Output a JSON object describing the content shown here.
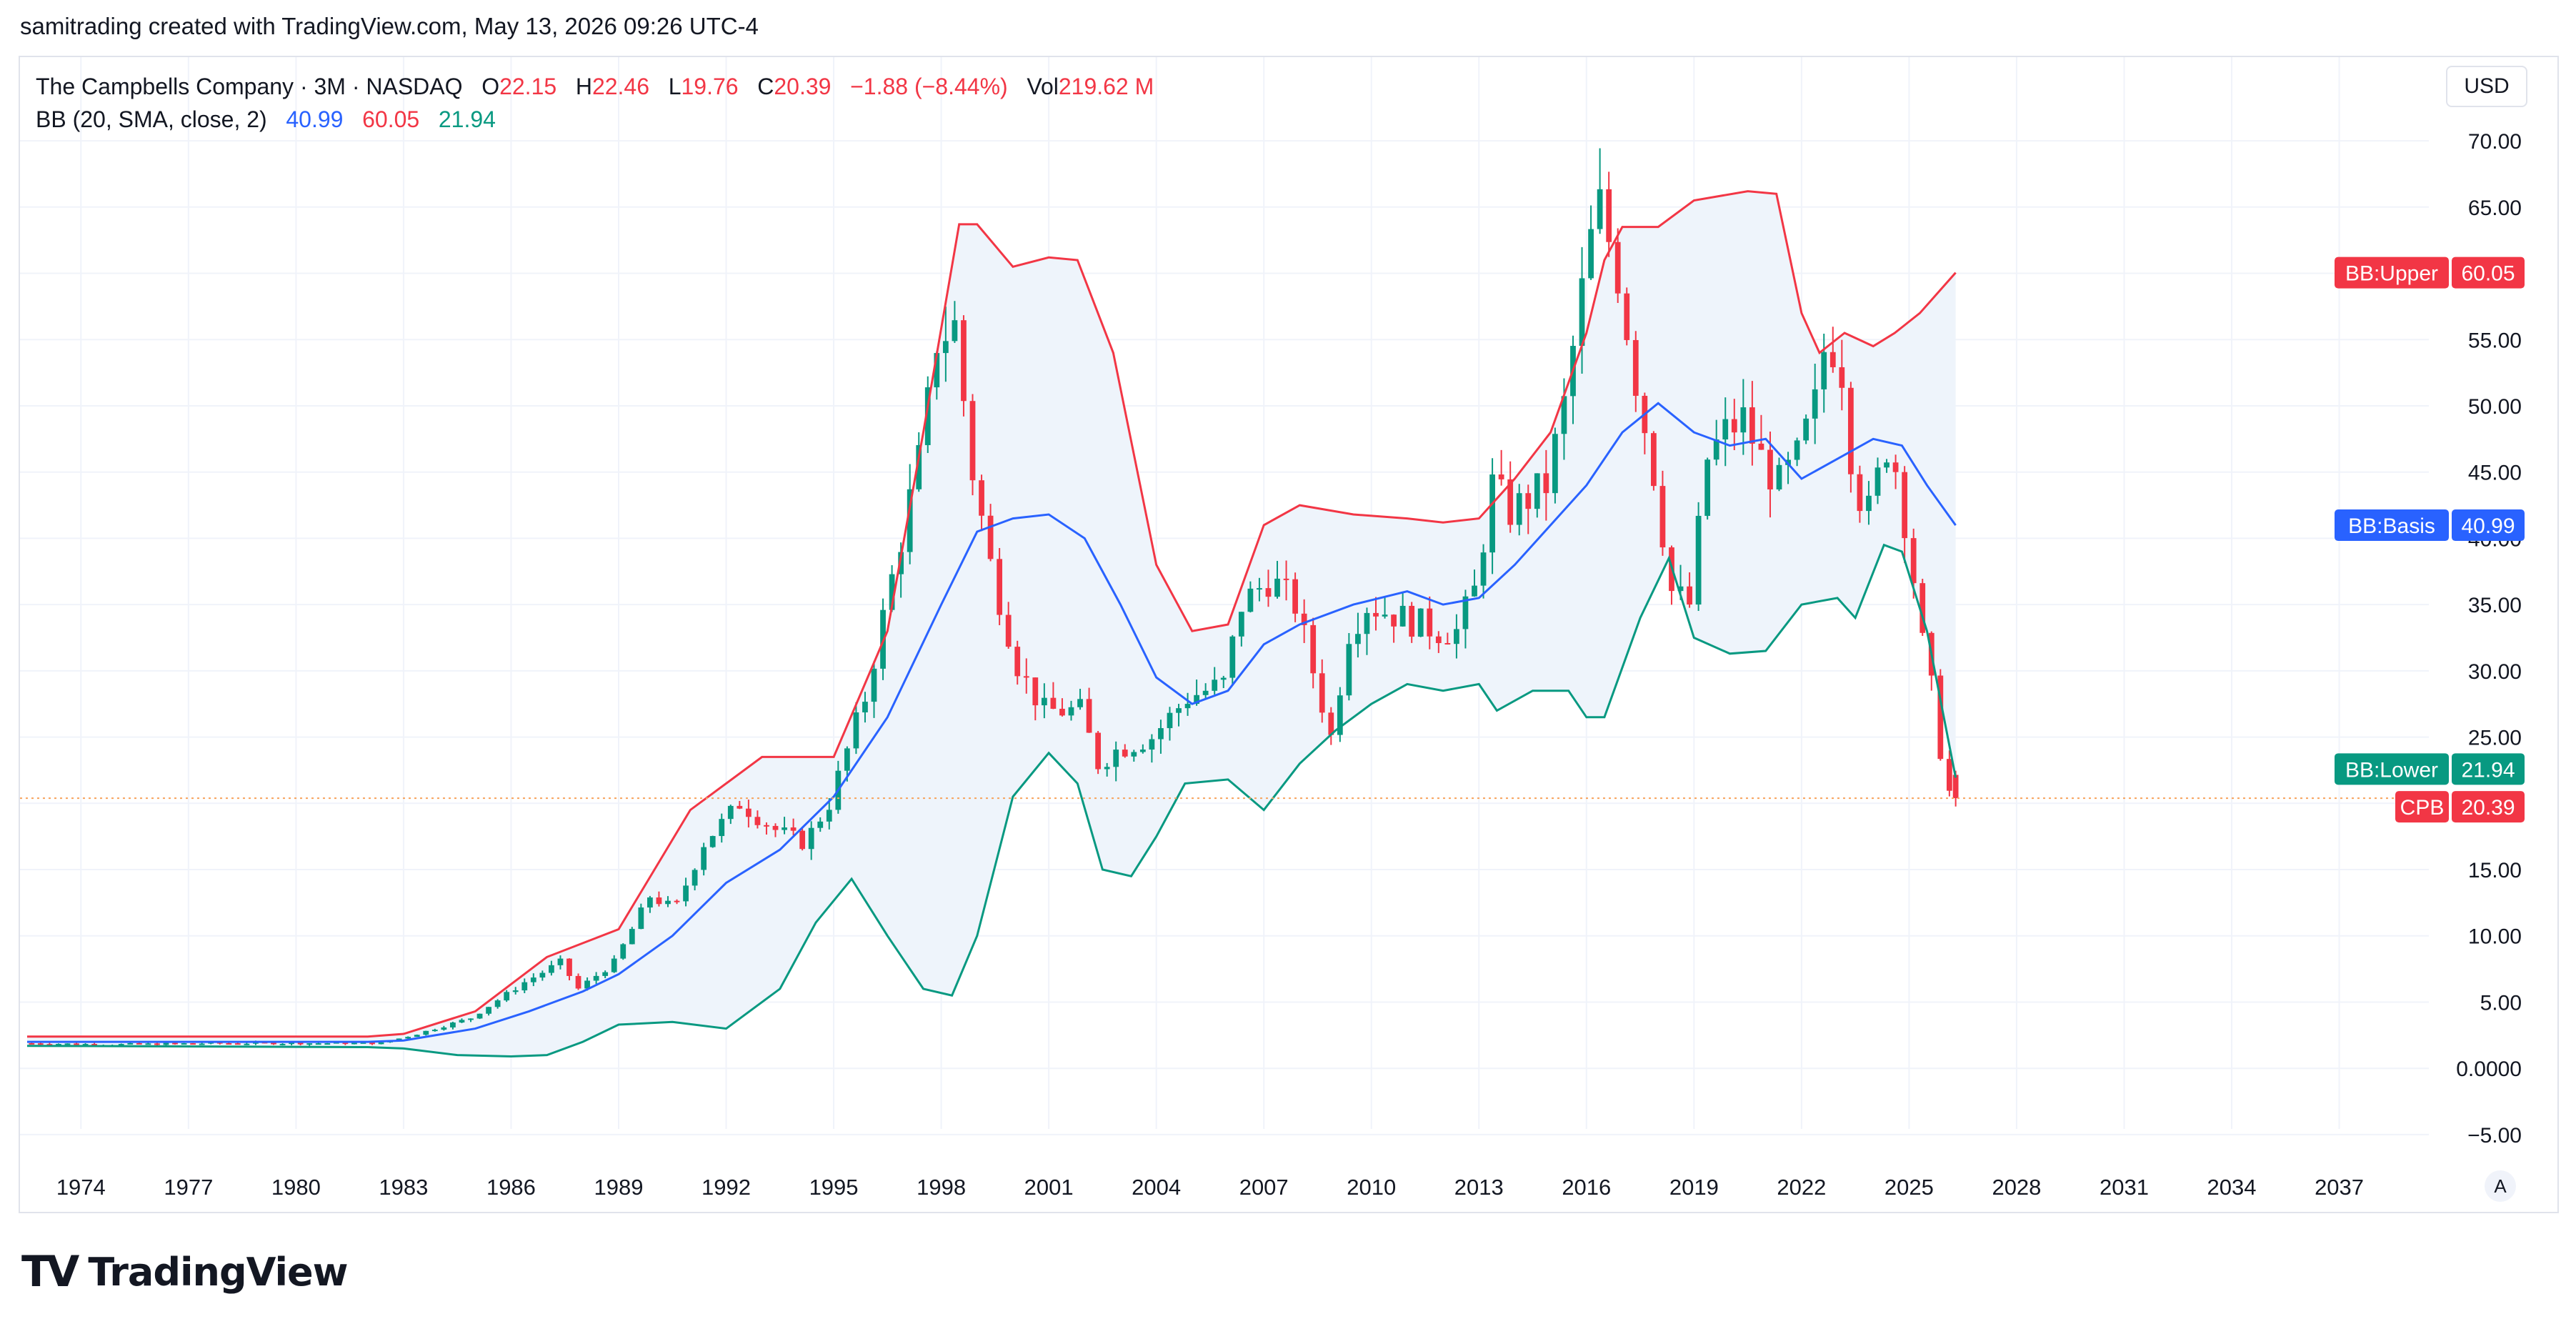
{
  "caption": "samitrading created with TradingView.com, May 13, 2026 09:26 UTC-4",
  "header": {
    "symbol": "The Campbells Company · 3M · NASDAQ",
    "o_label": "O",
    "o_value": "22.15",
    "h_label": "H",
    "h_value": "22.46",
    "l_label": "L",
    "l_value": "19.76",
    "c_label": "C",
    "c_value": "20.39",
    "change": "−1.88 (−8.44%)",
    "vol_label": "Vol",
    "vol_value": "219.62 M"
  },
  "indicator": {
    "name": "BB (20, SMA, close, 2)",
    "basis": "40.99",
    "upper": "60.05",
    "lower": "21.94"
  },
  "currency": "USD",
  "auto_label": "A",
  "logo_text": "TradingView",
  "colors": {
    "up": "#089981",
    "down": "#f23645",
    "basis": "#2962ff",
    "upper": "#f23645",
    "lower": "#089981",
    "fill": "#eef4fb",
    "last_price_line": "#f7a35c"
  },
  "chart_data": {
    "type": "candlestick",
    "title": "The Campbells Company · 3M · NASDAQ",
    "ylim": [
      -7,
      72
    ],
    "xlim": [
      1972.3,
      2039.5
    ],
    "y_ticks": [
      "70.00",
      "65.00",
      "60.00",
      "55.00",
      "50.00",
      "45.00",
      "40.00",
      "35.00",
      "30.00",
      "25.00",
      "20.00",
      "15.00",
      "10.00",
      "5.00",
      "0.0000",
      "−5.00"
    ],
    "y_tick_values": [
      70,
      65,
      60,
      55,
      50,
      45,
      40,
      35,
      30,
      25,
      20,
      15,
      10,
      5,
      0,
      -5
    ],
    "x_ticks": [
      "1974",
      "1977",
      "1980",
      "1983",
      "1986",
      "1989",
      "1992",
      "1995",
      "1998",
      "2001",
      "2004",
      "2007",
      "2010",
      "2013",
      "2016",
      "2019",
      "2022",
      "2025",
      "2028",
      "2031",
      "2034",
      "2037"
    ],
    "x_tick_values": [
      1974,
      1977,
      1980,
      1983,
      1986,
      1989,
      1992,
      1995,
      1998,
      2001,
      2004,
      2007,
      2010,
      2013,
      2016,
      2019,
      2022,
      2025,
      2028,
      2031,
      2034,
      2037
    ],
    "price_anchors": [
      [
        1972.5,
        1.9
      ],
      [
        1975,
        1.8
      ],
      [
        1978,
        1.9
      ],
      [
        1981,
        1.9
      ],
      [
        1982.5,
        1.9
      ],
      [
        1983.5,
        2.6
      ],
      [
        1985,
        3.8
      ],
      [
        1986.5,
        6.5
      ],
      [
        1987.5,
        8
      ],
      [
        1988,
        6
      ],
      [
        1989,
        8
      ],
      [
        1990,
        13
      ],
      [
        1990.7,
        12
      ],
      [
        1991.5,
        17
      ],
      [
        1992.5,
        20
      ],
      [
        1993.5,
        18
      ],
      [
        1994.3,
        17
      ],
      [
        1995,
        20
      ],
      [
        1996,
        28
      ],
      [
        1997,
        40
      ],
      [
        1997.6,
        47
      ],
      [
        1998,
        55
      ],
      [
        1998.5,
        56
      ],
      [
        1999,
        45
      ],
      [
        1999.5,
        38
      ],
      [
        2000.3,
        30
      ],
      [
        2001,
        27
      ],
      [
        2002,
        27
      ],
      [
        2002.5,
        23
      ],
      [
        2003,
        24
      ],
      [
        2004,
        25
      ],
      [
        2005,
        28
      ],
      [
        2006,
        29
      ],
      [
        2006.5,
        35
      ],
      [
        2007.3,
        37
      ],
      [
        2008,
        35
      ],
      [
        2008.5,
        30
      ],
      [
        2009,
        25
      ],
      [
        2009.5,
        33
      ],
      [
        2010,
        35
      ],
      [
        2011,
        34
      ],
      [
        2012,
        33
      ],
      [
        2012.5,
        33
      ],
      [
        2013,
        36
      ],
      [
        2013.5,
        44
      ],
      [
        2014,
        42
      ],
      [
        2015,
        44
      ],
      [
        2015.5,
        50
      ],
      [
        2016.2,
        62
      ],
      [
        2016.5,
        65
      ],
      [
        2017,
        60
      ],
      [
        2017.5,
        52
      ],
      [
        2018,
        45
      ],
      [
        2018.5,
        36
      ],
      [
        2019,
        35
      ],
      [
        2019.5,
        46
      ],
      [
        2020,
        48
      ],
      [
        2020.5,
        49
      ],
      [
        2021,
        46
      ],
      [
        2021.5,
        44
      ],
      [
        2022,
        46
      ],
      [
        2022.5,
        50
      ],
      [
        2022.8,
        55
      ],
      [
        2023.2,
        54
      ],
      [
        2023.6,
        44
      ],
      [
        2024,
        42
      ],
      [
        2024.5,
        47
      ],
      [
        2024.8,
        45
      ],
      [
        2025.2,
        38
      ],
      [
        2025.5,
        32
      ],
      [
        2025.8,
        28
      ],
      [
        2026.1,
        22.15
      ],
      [
        2026.3,
        20.39
      ]
    ],
    "last_candle": {
      "open": 22.15,
      "high": 22.46,
      "low": 19.76,
      "close": 20.39,
      "change": -1.88,
      "change_pct": -8.44
    },
    "series": [
      {
        "name": "CPB",
        "last": 20.39
      },
      {
        "name": "BB:Upper",
        "last": 60.05,
        "points": [
          [
            1972.5,
            2.4
          ],
          [
            1982,
            2.4
          ],
          [
            1983,
            2.6
          ],
          [
            1985,
            4.3
          ],
          [
            1987,
            8.4
          ],
          [
            1989,
            10.5
          ],
          [
            1990,
            15
          ],
          [
            1991,
            19.5
          ],
          [
            1992,
            21.5
          ],
          [
            1993,
            23.5
          ],
          [
            1995,
            23.5
          ],
          [
            1996.5,
            33
          ],
          [
            1997.5,
            48
          ],
          [
            1998.5,
            63.7
          ],
          [
            1999,
            63.7
          ],
          [
            2000,
            60.5
          ],
          [
            2001,
            61.2
          ],
          [
            2001.8,
            61
          ],
          [
            2002.8,
            54
          ],
          [
            2004,
            38
          ],
          [
            2005,
            33
          ],
          [
            2006,
            33.5
          ],
          [
            2007,
            41
          ],
          [
            2008,
            42.5
          ],
          [
            2009.5,
            41.8
          ],
          [
            2011,
            41.5
          ],
          [
            2012,
            41.2
          ],
          [
            2013,
            41.5
          ],
          [
            2014,
            44.5
          ],
          [
            2015,
            48
          ],
          [
            2016,
            55.5
          ],
          [
            2016.5,
            61
          ],
          [
            2017,
            63.5
          ],
          [
            2018,
            63.5
          ],
          [
            2019,
            65.5
          ],
          [
            2020.5,
            66.2
          ],
          [
            2021.3,
            66
          ],
          [
            2022,
            57
          ],
          [
            2022.5,
            54
          ],
          [
            2023.2,
            55.5
          ],
          [
            2024,
            54.5
          ],
          [
            2024.6,
            55.5
          ],
          [
            2025.3,
            57
          ],
          [
            2026.3,
            60.05
          ]
        ]
      },
      {
        "name": "BB:Basis",
        "last": 40.99,
        "points": [
          [
            1972.5,
            2.0
          ],
          [
            1982,
            2.0
          ],
          [
            1983,
            2.1
          ],
          [
            1985,
            3.0
          ],
          [
            1986.5,
            4.3
          ],
          [
            1988,
            5.8
          ],
          [
            1989,
            7.1
          ],
          [
            1990.5,
            10
          ],
          [
            1992,
            14
          ],
          [
            1993.5,
            16.5
          ],
          [
            1995,
            20.5
          ],
          [
            1996.5,
            26.5
          ],
          [
            1998,
            35
          ],
          [
            1999,
            40.5
          ],
          [
            2000,
            41.5
          ],
          [
            2001,
            41.8
          ],
          [
            2002,
            40
          ],
          [
            2003,
            35
          ],
          [
            2004,
            29.5
          ],
          [
            2005,
            27.5
          ],
          [
            2006,
            28.5
          ],
          [
            2007,
            32
          ],
          [
            2008,
            33.5
          ],
          [
            2009.5,
            35
          ],
          [
            2011,
            36
          ],
          [
            2012,
            35
          ],
          [
            2013,
            35.5
          ],
          [
            2014,
            38
          ],
          [
            2015,
            41
          ],
          [
            2016,
            44
          ],
          [
            2017,
            48
          ],
          [
            2018,
            50.2
          ],
          [
            2019,
            48
          ],
          [
            2020,
            47
          ],
          [
            2021,
            47.5
          ],
          [
            2022,
            44.5
          ],
          [
            2023,
            46
          ],
          [
            2024,
            47.5
          ],
          [
            2024.8,
            47
          ],
          [
            2025.5,
            44
          ],
          [
            2026.3,
            40.99
          ]
        ]
      },
      {
        "name": "BB:Lower",
        "last": 21.94,
        "points": [
          [
            1972.5,
            1.7
          ],
          [
            1982,
            1.6
          ],
          [
            1983,
            1.5
          ],
          [
            1984.5,
            1.0
          ],
          [
            1986,
            0.9
          ],
          [
            1987,
            1.0
          ],
          [
            1988,
            2.0
          ],
          [
            1989,
            3.3
          ],
          [
            1990.5,
            3.5
          ],
          [
            1992,
            3.0
          ],
          [
            1993.5,
            6
          ],
          [
            1994.5,
            11
          ],
          [
            1995.5,
            14.3
          ],
          [
            1996.5,
            10
          ],
          [
            1997.5,
            6
          ],
          [
            1998.3,
            5.5
          ],
          [
            1999,
            10
          ],
          [
            2000,
            20.5
          ],
          [
            2001,
            23.8
          ],
          [
            2001.8,
            21.5
          ],
          [
            2002.5,
            15
          ],
          [
            2003.3,
            14.5
          ],
          [
            2004,
            17.5
          ],
          [
            2004.8,
            21.5
          ],
          [
            2006,
            21.8
          ],
          [
            2007,
            19.5
          ],
          [
            2008,
            23
          ],
          [
            2009,
            25.5
          ],
          [
            2010,
            27.5
          ],
          [
            2011,
            29
          ],
          [
            2012,
            28.5
          ],
          [
            2013,
            29
          ],
          [
            2013.5,
            27
          ],
          [
            2014.5,
            28.5
          ],
          [
            2015.5,
            28.5
          ],
          [
            2016,
            26.5
          ],
          [
            2016.5,
            26.5
          ],
          [
            2017.5,
            34
          ],
          [
            2018.3,
            38.5
          ],
          [
            2019,
            32.5
          ],
          [
            2020,
            31.3
          ],
          [
            2021,
            31.5
          ],
          [
            2022,
            35
          ],
          [
            2023,
            35.5
          ],
          [
            2023.5,
            34
          ],
          [
            2024.3,
            39.5
          ],
          [
            2024.8,
            39
          ],
          [
            2025.5,
            33
          ],
          [
            2026.3,
            21.94
          ]
        ]
      }
    ]
  },
  "axis_badges": [
    {
      "label": "BB:Upper",
      "value": "60.05"
    },
    {
      "label": "BB:Basis",
      "value": "40.99"
    },
    {
      "label": "BB:Lower",
      "value": "21.94"
    },
    {
      "label": "CPB",
      "value": "20.39"
    }
  ]
}
